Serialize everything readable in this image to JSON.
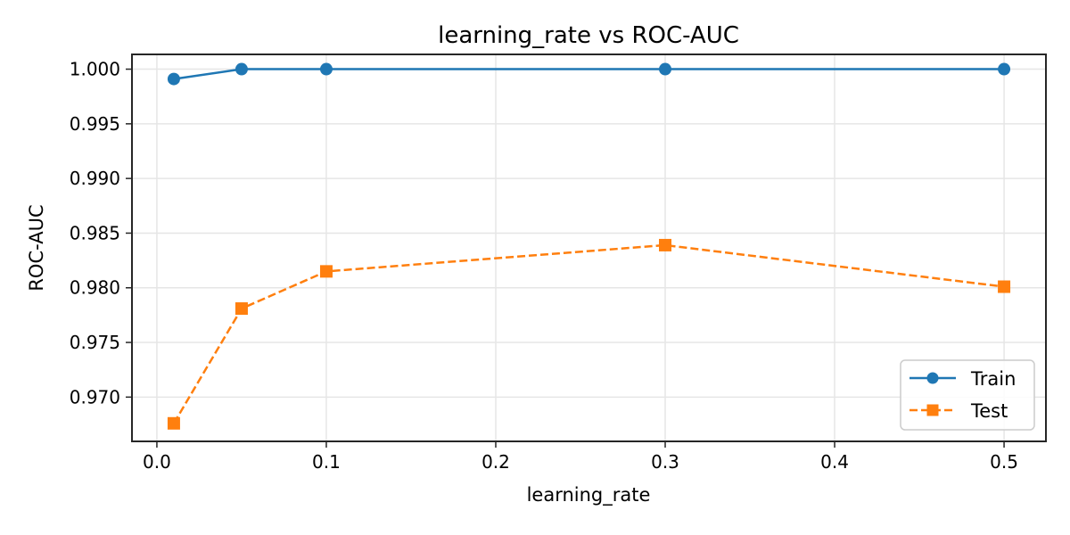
{
  "chart_data": {
    "type": "line",
    "title": "learning_rate vs ROC-AUC",
    "xlabel": "learning_rate",
    "ylabel": "ROC-AUC",
    "x": [
      0.01,
      0.05,
      0.1,
      0.3,
      0.5
    ],
    "series": [
      {
        "name": "Train",
        "values": [
          0.9991,
          1.0,
          1.0,
          1.0,
          1.0
        ],
        "color": "#1f77b4",
        "marker": "circle",
        "linestyle": "solid"
      },
      {
        "name": "Test",
        "values": [
          0.9676,
          0.9781,
          0.9815,
          0.9839,
          0.9801
        ],
        "color": "#ff7f0e",
        "marker": "square",
        "linestyle": "dashed"
      }
    ],
    "xlim": [
      -0.0147,
      0.5247
    ],
    "ylim": [
      0.96595,
      1.00135
    ],
    "xticks": [
      0.0,
      0.1,
      0.2,
      0.3,
      0.4,
      0.5
    ],
    "xtick_labels": [
      "0.0",
      "0.1",
      "0.2",
      "0.3",
      "0.4",
      "0.5"
    ],
    "yticks": [
      0.97,
      0.975,
      0.98,
      0.985,
      0.99,
      0.995,
      1.0
    ],
    "ytick_labels": [
      "0.970",
      "0.975",
      "0.980",
      "0.985",
      "0.990",
      "0.995",
      "1.000"
    ],
    "grid": true,
    "legend_position": "lower right"
  }
}
